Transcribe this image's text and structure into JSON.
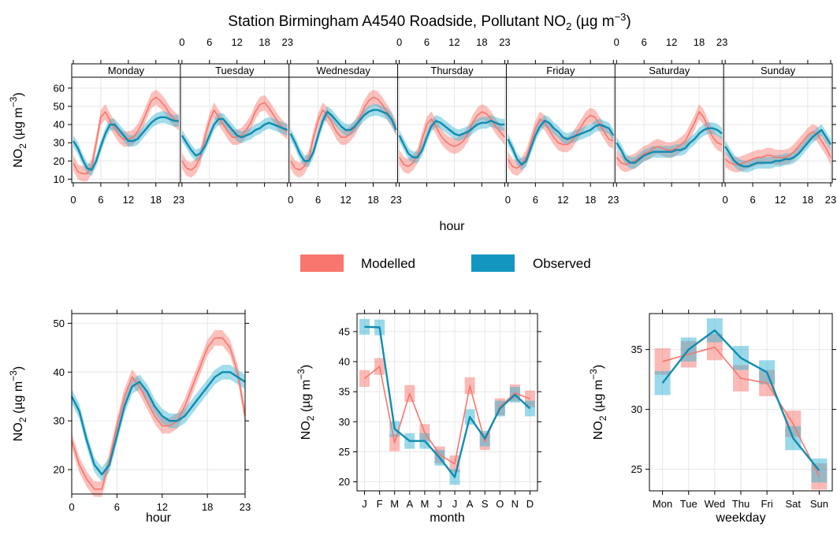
{
  "title_parts": {
    "prefix": "Station Birmingham A4540 Roadside, Pollutant NO",
    "sub2": "2",
    "units_open": " (µg m",
    "sup": "−3",
    "units_close": ")"
  },
  "ylabel_parts": {
    "main": "NO",
    "sub": "2",
    "units": " (µg m",
    "sup": "−3",
    "close": ")"
  },
  "colors": {
    "modelled": "#f8766d",
    "observed": "#0f8cb0",
    "modelled_band": "#f8766d",
    "observed_band": "#35b3d3"
  },
  "legend": [
    {
      "label": "Modelled",
      "color": "#f8766d"
    },
    {
      "label": "Observed",
      "color": "#1497bf"
    }
  ],
  "chart_data": [
    {
      "type": "line",
      "panel": "day-hour",
      "xlabel": "hour",
      "ylabel": "NO2 (µg m−3)",
      "days": [
        "Monday",
        "Tuesday",
        "Wednesday",
        "Thursday",
        "Friday",
        "Saturday",
        "Sunday"
      ],
      "hour_ticks": [
        "0",
        "6",
        "12",
        "18",
        "23"
      ],
      "ylim": [
        8,
        66
      ],
      "yticks": [
        10,
        20,
        30,
        40,
        50,
        60
      ],
      "series": [
        {
          "name": "Modelled",
          "values": [
            19,
            14,
            13,
            13,
            17,
            30,
            44,
            47,
            42,
            38,
            34,
            32,
            32,
            33,
            36,
            41,
            47,
            53,
            55,
            53,
            50,
            46,
            43,
            41,
            20,
            16,
            15,
            17,
            22,
            33,
            42,
            48,
            44,
            40,
            36,
            33,
            33,
            34,
            37,
            41,
            47,
            51,
            52,
            49,
            45,
            41,
            38,
            36,
            20,
            16,
            15,
            17,
            22,
            33,
            42,
            48,
            45,
            41,
            36,
            33,
            33,
            35,
            38,
            43,
            49,
            53,
            55,
            54,
            51,
            47,
            43,
            38,
            22,
            18,
            17,
            19,
            23,
            32,
            40,
            43,
            39,
            34,
            31,
            29,
            28,
            29,
            31,
            35,
            41,
            45,
            47,
            46,
            43,
            39,
            36,
            33,
            21,
            17,
            16,
            18,
            22,
            30,
            38,
            43,
            41,
            37,
            33,
            30,
            29,
            29,
            31,
            35,
            39,
            43,
            45,
            44,
            40,
            36,
            32,
            31,
            22,
            19,
            18,
            19,
            20,
            22,
            24,
            25,
            27,
            28,
            27,
            26,
            26,
            27,
            29,
            31,
            36,
            41,
            47,
            44,
            38,
            33,
            30,
            29,
            21,
            19,
            18,
            18,
            19,
            20,
            21,
            22,
            22,
            23,
            23,
            22,
            22,
            22,
            23,
            25,
            28,
            31,
            34,
            36,
            35,
            31,
            27,
            22
          ]
        },
        {
          "name": "Observed",
          "values": [
            31,
            27,
            21,
            16,
            15,
            20,
            28,
            35,
            40,
            40,
            37,
            34,
            31,
            31,
            32,
            35,
            38,
            41,
            43,
            44,
            44,
            43,
            42,
            42,
            34,
            30,
            26,
            23,
            24,
            28,
            34,
            40,
            43,
            43,
            40,
            37,
            34,
            33,
            34,
            35,
            37,
            38,
            40,
            41,
            40,
            39,
            38,
            37,
            35,
            30,
            24,
            20,
            20,
            25,
            34,
            42,
            47,
            45,
            42,
            39,
            37,
            37,
            39,
            42,
            45,
            47,
            48,
            48,
            47,
            46,
            43,
            37,
            34,
            29,
            24,
            22,
            22,
            26,
            33,
            39,
            42,
            41,
            39,
            37,
            35,
            34,
            35,
            36,
            38,
            40,
            41,
            41,
            42,
            41,
            40,
            40,
            32,
            27,
            21,
            18,
            20,
            27,
            34,
            39,
            42,
            41,
            38,
            36,
            33,
            32,
            33,
            34,
            35,
            36,
            37,
            39,
            40,
            39,
            38,
            34,
            30,
            26,
            21,
            19,
            19,
            21,
            23,
            24,
            25,
            25,
            25,
            25,
            25,
            26,
            26,
            27,
            30,
            32,
            35,
            37,
            38,
            38,
            37,
            35,
            28,
            24,
            20,
            18,
            17,
            17,
            18,
            19,
            19,
            19,
            19,
            20,
            20,
            21,
            21,
            22,
            24,
            27,
            30,
            33,
            35,
            37,
            33,
            29
          ]
        }
      ]
    },
    {
      "type": "line",
      "panel": "hour",
      "xlabel": "hour",
      "ylabel": "NO2 (µg m−3)",
      "x_ticks": [
        "0",
        "6",
        "12",
        "18",
        "23"
      ],
      "ylim": [
        15,
        52
      ],
      "yticks": [
        20,
        30,
        40,
        50
      ],
      "series": [
        {
          "name": "Modelled",
          "values": [
            26,
            21,
            18,
            16,
            16,
            22,
            29,
            35,
            39,
            37,
            34,
            31,
            29,
            29,
            30,
            33,
            37,
            41,
            45,
            47,
            47,
            45,
            40,
            31
          ]
        },
        {
          "name": "Observed",
          "values": [
            35,
            32,
            26,
            21,
            19,
            21,
            27,
            33,
            37,
            38,
            36,
            33,
            31,
            30,
            30,
            31,
            33,
            35,
            37,
            39,
            40,
            40,
            39,
            38
          ]
        }
      ]
    },
    {
      "type": "line",
      "panel": "month",
      "xlabel": "month",
      "ylabel": "NO2 (µg m−3)",
      "categories": [
        "J",
        "F",
        "M",
        "A",
        "M",
        "J",
        "J",
        "A",
        "S",
        "O",
        "N",
        "D"
      ],
      "ylim": [
        18.5,
        48
      ],
      "yticks": [
        20,
        25,
        30,
        35,
        40,
        45
      ],
      "series": [
        {
          "name": "Modelled",
          "values": [
            37.2,
            39.2,
            26.5,
            34.7,
            28.2,
            24.5,
            23.0,
            36.0,
            26.7,
            32.5,
            34.8,
            33.8
          ]
        },
        {
          "name": "Observed",
          "values": [
            45.8,
            45.7,
            28.8,
            26.8,
            26.8,
            24.0,
            20.8,
            30.8,
            27.2,
            32.2,
            34.5,
            32.2
          ]
        }
      ]
    },
    {
      "type": "line",
      "panel": "weekday",
      "xlabel": "weekday",
      "ylabel": "NO2 (µg m−3)",
      "categories": [
        "Mon",
        "Tue",
        "Wed",
        "Thu",
        "Fri",
        "Sat",
        "Sun"
      ],
      "ylim": [
        23.2,
        38.0
      ],
      "yticks": [
        25,
        30,
        35
      ],
      "series": [
        {
          "name": "Modelled",
          "values": [
            34.0,
            34.6,
            35.2,
            32.6,
            32.2,
            28.8,
            24.4
          ]
        },
        {
          "name": "Observed",
          "values": [
            32.2,
            35.0,
            36.6,
            34.3,
            33.1,
            27.6,
            24.9
          ]
        }
      ]
    }
  ]
}
